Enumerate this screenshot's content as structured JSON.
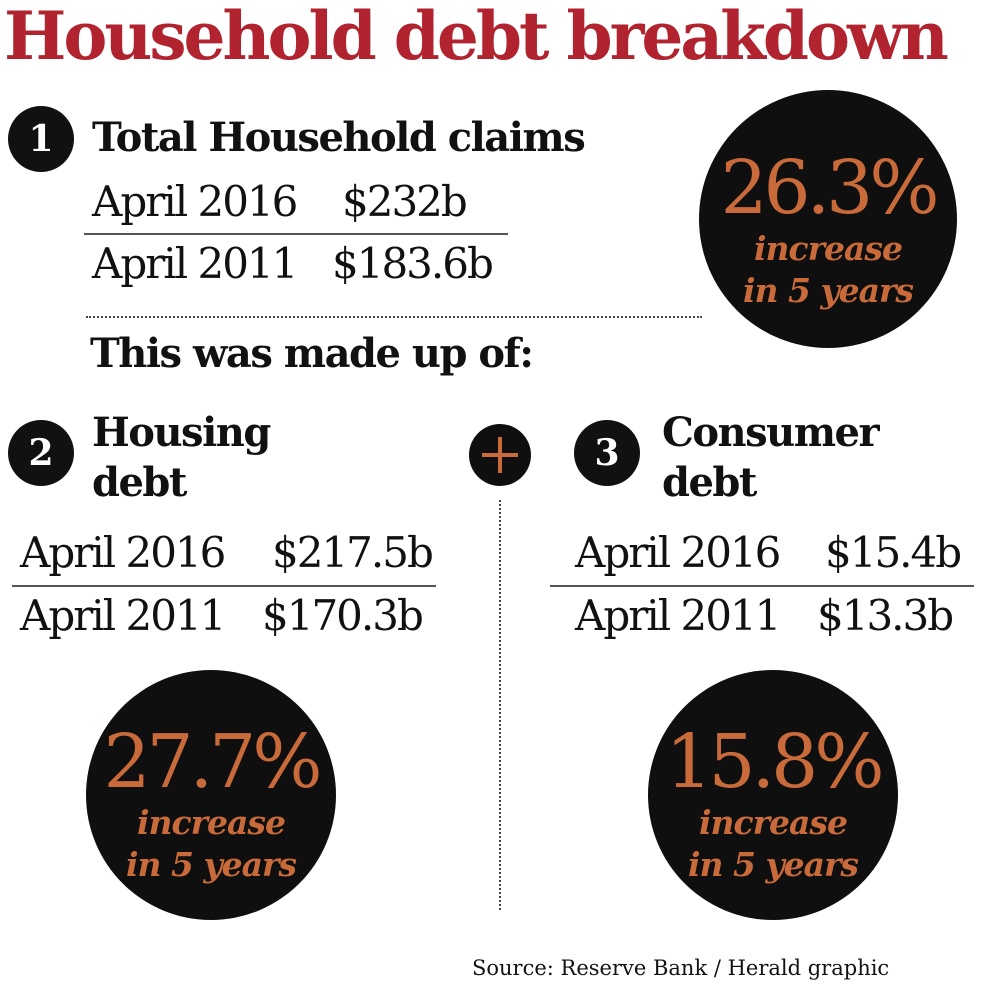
{
  "title": "Household debt breakdown",
  "total": {
    "number": "1",
    "heading": "Total Household claims",
    "rows": [
      {
        "label": "April 2016",
        "value": "$232b"
      },
      {
        "label": "April 2011",
        "value": "$183.6b"
      }
    ],
    "badge": {
      "percent": "26.3%",
      "line1": "increase",
      "line2": "in 5 years"
    }
  },
  "made_up_of": "This was made up of:",
  "housing": {
    "number": "2",
    "heading_line1": "Housing",
    "heading_line2": "debt",
    "rows": [
      {
        "label": "April 2016",
        "value": "$217.5b"
      },
      {
        "label": "April 2011",
        "value": "$170.3b"
      }
    ],
    "badge": {
      "percent": "27.7%",
      "line1": "increase",
      "line2": "in 5 years"
    }
  },
  "consumer": {
    "number": "3",
    "heading_line1": "Consumer",
    "heading_line2": "debt",
    "rows": [
      {
        "label": "April 2016",
        "value": "$15.4b"
      },
      {
        "label": "April 2011",
        "value": "$13.3b"
      }
    ],
    "badge": {
      "percent": "15.8%",
      "line1": "increase",
      "line2": "in 5 years"
    }
  },
  "source": "Source: Reserve Bank / Herald graphic",
  "colors": {
    "title": "#b0232f",
    "accent": "#c96a3b",
    "badge_bg": "#0f0f0f"
  }
}
